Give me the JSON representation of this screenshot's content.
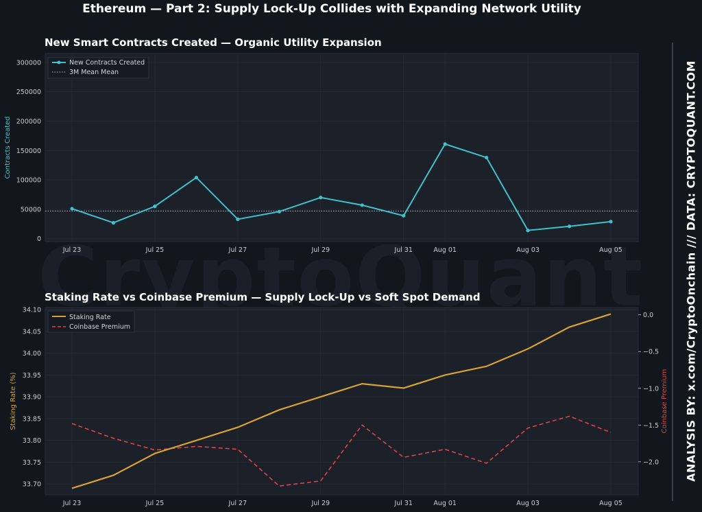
{
  "page": {
    "title": "Ethereum — Part 2: Supply Lock-Up Collides with Expanding Network Utility",
    "watermark": "CryptoQuant",
    "side_text": "ANALYSIS BY: x.com/CryptoOnchain   ///   DATA: CRYPTOQUANT.COM"
  },
  "colors": {
    "background": "#12161d",
    "panel": "#1b2029",
    "contracts": "#3fc2cc",
    "mean": "#b8bec7",
    "staking": "#d9a232",
    "premium": "#e04545"
  },
  "chart_data": [
    {
      "type": "line",
      "title": "New Smart Contracts Created — Organic Utility Expansion",
      "ylabel": "Contracts Created",
      "ylim": [
        -5000,
        315000
      ],
      "yticks": [
        0,
        50000,
        100000,
        150000,
        200000,
        250000,
        300000
      ],
      "ytick_labels": [
        "0",
        "50000",
        "100000",
        "150000",
        "200000",
        "250000",
        "300000"
      ],
      "x": [
        "Jul 23",
        "Jul 24",
        "Jul 25",
        "Jul 26",
        "Jul 27",
        "Jul 28",
        "Jul 29",
        "Jul 30",
        "Jul 31",
        "Aug 01",
        "Aug 02",
        "Aug 03",
        "Aug 04",
        "Aug 05"
      ],
      "xtick_labels": [
        {
          "index": 0,
          "label": "Jul 23"
        },
        {
          "index": 2,
          "label": "Jul 25"
        },
        {
          "index": 4,
          "label": "Jul 27"
        },
        {
          "index": 6,
          "label": "Jul 29"
        },
        {
          "index": 8,
          "label": "Jul 31"
        },
        {
          "index": 9,
          "label": "Aug 01"
        },
        {
          "index": 11,
          "label": "Aug 03"
        },
        {
          "index": 13,
          "label": "Aug 05"
        }
      ],
      "grid": true,
      "legend_position": "top-left",
      "series": [
        {
          "name": "New Contracts Created",
          "values": [
            51000,
            27000,
            55000,
            104000,
            33000,
            46000,
            70000,
            57000,
            39000,
            161000,
            138000,
            14000,
            21000,
            29000
          ]
        }
      ],
      "mean_line": {
        "name": "3M Mean Mean",
        "value": 47000
      }
    },
    {
      "type": "line",
      "title": "Staking Rate vs Coinbase Premium — Supply Lock-Up vs Soft Spot Demand",
      "ylabel": "Staking Rate (%)",
      "ylabel_right": "Coinbase Premium",
      "ylim": [
        33.675,
        34.105
      ],
      "ylim_right": [
        -2.45,
        0.1
      ],
      "yticks": [
        33.7,
        33.75,
        33.8,
        33.85,
        33.9,
        33.95,
        34.0,
        34.05,
        34.1
      ],
      "ytick_labels": [
        "33.70",
        "33.75",
        "33.80",
        "33.85",
        "33.90",
        "33.95",
        "34.00",
        "34.05",
        "34.10"
      ],
      "yticks_right": [
        0.0,
        -0.5,
        -1.0,
        -1.5,
        -2.0
      ],
      "ytick_labels_right": [
        "0.0",
        "−0.5",
        "−1.0",
        "−1.5",
        "−2.0"
      ],
      "x": [
        "Jul 23",
        "Jul 24",
        "Jul 25",
        "Jul 26",
        "Jul 27",
        "Jul 28",
        "Jul 29",
        "Jul 30",
        "Jul 31",
        "Aug 01",
        "Aug 02",
        "Aug 03",
        "Aug 04",
        "Aug 05"
      ],
      "xtick_labels": [
        {
          "index": 0,
          "label": "Jul 23"
        },
        {
          "index": 2,
          "label": "Jul 25"
        },
        {
          "index": 4,
          "label": "Jul 27"
        },
        {
          "index": 6,
          "label": "Jul 29"
        },
        {
          "index": 8,
          "label": "Jul 31"
        },
        {
          "index": 9,
          "label": "Aug 01"
        },
        {
          "index": 11,
          "label": "Aug 03"
        },
        {
          "index": 13,
          "label": "Aug 05"
        }
      ],
      "grid": true,
      "legend_position": "top-left",
      "series": [
        {
          "name": "Staking Rate",
          "axis": "left",
          "values": [
            33.69,
            33.72,
            33.77,
            33.8,
            33.83,
            33.87,
            33.9,
            33.93,
            33.92,
            33.95,
            33.97,
            34.01,
            34.06,
            34.09
          ]
        },
        {
          "name": "Coinbase Premium",
          "axis": "right",
          "values": [
            -1.48,
            -1.68,
            -1.84,
            -1.79,
            -1.83,
            -2.33,
            -2.26,
            -1.5,
            -1.94,
            -1.83,
            -2.02,
            -1.54,
            -1.38,
            -1.6
          ]
        }
      ]
    }
  ]
}
